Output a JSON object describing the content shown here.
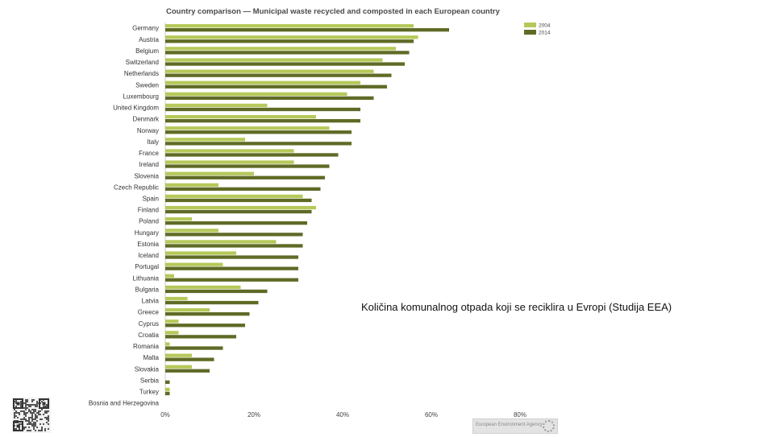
{
  "chart_data": {
    "type": "bar",
    "orientation": "horizontal",
    "title": "Country comparison — Municipal waste recycled and composted in each European country",
    "categories": [
      "Germany",
      "Austria",
      "Belgium",
      "Switzerland",
      "Netherlands",
      "Sweden",
      "Luxembourg",
      "United Kingdom",
      "Denmark",
      "Norway",
      "Italy",
      "France",
      "Ireland",
      "Slovenia",
      "Czech Republic",
      "Spain",
      "Finland",
      "Poland",
      "Hungary",
      "Estonia",
      "Iceland",
      "Portugal",
      "Lithuania",
      "Bulgaria",
      "Latvia",
      "Greece",
      "Cyprus",
      "Croatia",
      "Romania",
      "Malta",
      "Slovakia",
      "Serbia",
      "Turkey",
      "Bosnia and Herzegovina"
    ],
    "series": [
      {
        "name": "2004",
        "color": "#b5c95a",
        "values": [
          56,
          57,
          52,
          49,
          47,
          44,
          41,
          23,
          34,
          37,
          18,
          29,
          29,
          20,
          12,
          31,
          34,
          6,
          12,
          25,
          16,
          13,
          2,
          17,
          5,
          10,
          3,
          3,
          1,
          6,
          6,
          0,
          1,
          0
        ]
      },
      {
        "name": "2014",
        "color": "#5f6b26",
        "values": [
          64,
          56,
          55,
          54,
          51,
          50,
          47,
          44,
          44,
          42,
          42,
          39,
          37,
          36,
          35,
          33,
          33,
          32,
          31,
          31,
          30,
          30,
          30,
          23,
          21,
          19,
          18,
          16,
          13,
          11,
          10,
          1,
          1,
          0
        ]
      }
    ],
    "xlim": [
      0,
      80
    ],
    "xticks": [
      "0%",
      "20%",
      "40%",
      "60%",
      "80%"
    ],
    "legend_position": "top-right",
    "grid": false
  },
  "caption": "Količina komunalnog otpada koji se reciklira u Evropi (Studija EEA)",
  "footer": {
    "logo_text": "European Environment Agency"
  }
}
